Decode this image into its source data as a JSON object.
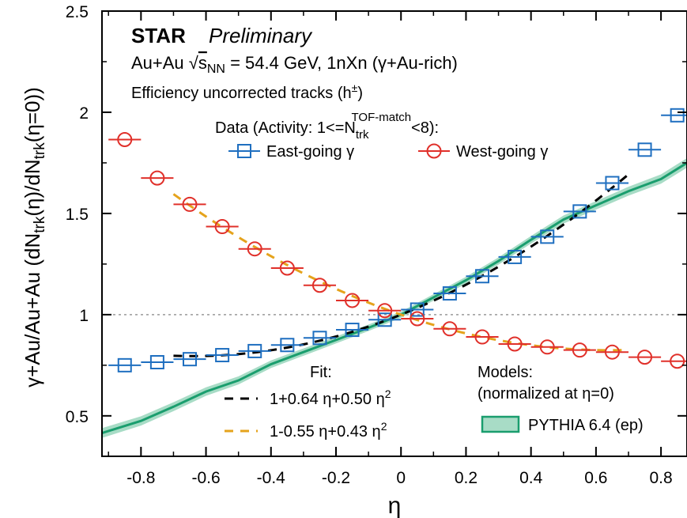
{
  "chart_data": {
    "type": "scatter",
    "xlabel": "η",
    "ylabel": "γ+Au/Au+Au (dN_trk(η)/dN_trk(η=0))",
    "xlim": [
      -0.92,
      0.88
    ],
    "ylim": [
      0.3,
      2.5
    ],
    "x_ticks": [
      -0.8,
      -0.6,
      -0.4,
      -0.2,
      0,
      0.2,
      0.4,
      0.6,
      0.8
    ],
    "x_tick_labels": [
      "-0.8",
      "-0.6",
      "-0.4",
      "-0.2",
      "0",
      "0.2",
      "0.4",
      "0.6",
      "0.8"
    ],
    "y_ticks": [
      0.5,
      1,
      1.5,
      2,
      2.5
    ],
    "y_tick_labels": [
      "0.5",
      "1",
      "1.5",
      "2",
      "2.5"
    ],
    "reference_line": 1,
    "bin_half_width": 0.05,
    "annotations": {
      "star": "STAR",
      "preliminary": "Preliminary",
      "system": "Au+Au √s_NN = 54.4 GeV, 1nXn (γ+Au-rich)",
      "tracks": "Efficiency uncorrected tracks (h±)",
      "data_heading": "Data (Activity: 1<=N_trk^TOF-match<8):",
      "fit_heading": "Fit:",
      "models_heading": "Models:",
      "models_note": "(normalized at η=0)"
    },
    "series": [
      {
        "name": "East-going γ",
        "marker": "square",
        "color": "#1f6fc0",
        "x": [
          -0.85,
          -0.75,
          -0.65,
          -0.55,
          -0.45,
          -0.35,
          -0.25,
          -0.15,
          -0.05,
          0.05,
          0.15,
          0.25,
          0.35,
          0.45,
          0.55,
          0.65,
          0.75,
          0.85
        ],
        "y": [
          0.75,
          0.765,
          0.78,
          0.8,
          0.82,
          0.85,
          0.885,
          0.925,
          0.975,
          1.025,
          1.105,
          1.19,
          1.285,
          1.385,
          1.51,
          1.65,
          1.815,
          1.985
        ]
      },
      {
        "name": "West-going γ",
        "marker": "circle",
        "color": "#e0302a",
        "x": [
          -0.85,
          -0.75,
          -0.65,
          -0.55,
          -0.45,
          -0.35,
          -0.25,
          -0.15,
          -0.05,
          0.05,
          0.15,
          0.25,
          0.35,
          0.45,
          0.55,
          0.65,
          0.75,
          0.85
        ],
        "y": [
          1.865,
          1.675,
          1.545,
          1.435,
          1.325,
          1.23,
          1.145,
          1.07,
          1.02,
          0.98,
          0.93,
          0.89,
          0.855,
          0.84,
          0.825,
          0.815,
          0.79,
          0.77
        ]
      }
    ],
    "fits": [
      {
        "name": "1+0.64 η+0.50 η²",
        "label_main": "1+0.64 η+0.50 η",
        "label_sup": "2",
        "a": 1,
        "b": 0.64,
        "c": 0.5,
        "range": [
          -0.7,
          0.7
        ],
        "color": "#000000"
      },
      {
        "name": "1-0.55 η+0.43 η²",
        "label_main": "1-0.55 η+0.43 η",
        "label_sup": "2",
        "a": 1,
        "b": -0.55,
        "c": 0.43,
        "range": [
          -0.7,
          0.7
        ],
        "color": "#e5a31c"
      }
    ],
    "models": [
      {
        "name": "PYTHIA 6.4 (ep)",
        "color": "#1a9e6e",
        "band_color": "#a8dcc6",
        "x": [
          -0.92,
          -0.8,
          -0.7,
          -0.6,
          -0.5,
          -0.4,
          -0.3,
          -0.2,
          -0.1,
          0.0,
          0.1,
          0.2,
          0.3,
          0.4,
          0.5,
          0.6,
          0.7,
          0.8,
          0.88
        ],
        "y": [
          0.415,
          0.475,
          0.545,
          0.62,
          0.675,
          0.755,
          0.815,
          0.875,
          0.935,
          1.0,
          1.085,
          1.17,
          1.265,
          1.37,
          1.47,
          1.54,
          1.61,
          1.67,
          1.75
        ]
      }
    ]
  }
}
